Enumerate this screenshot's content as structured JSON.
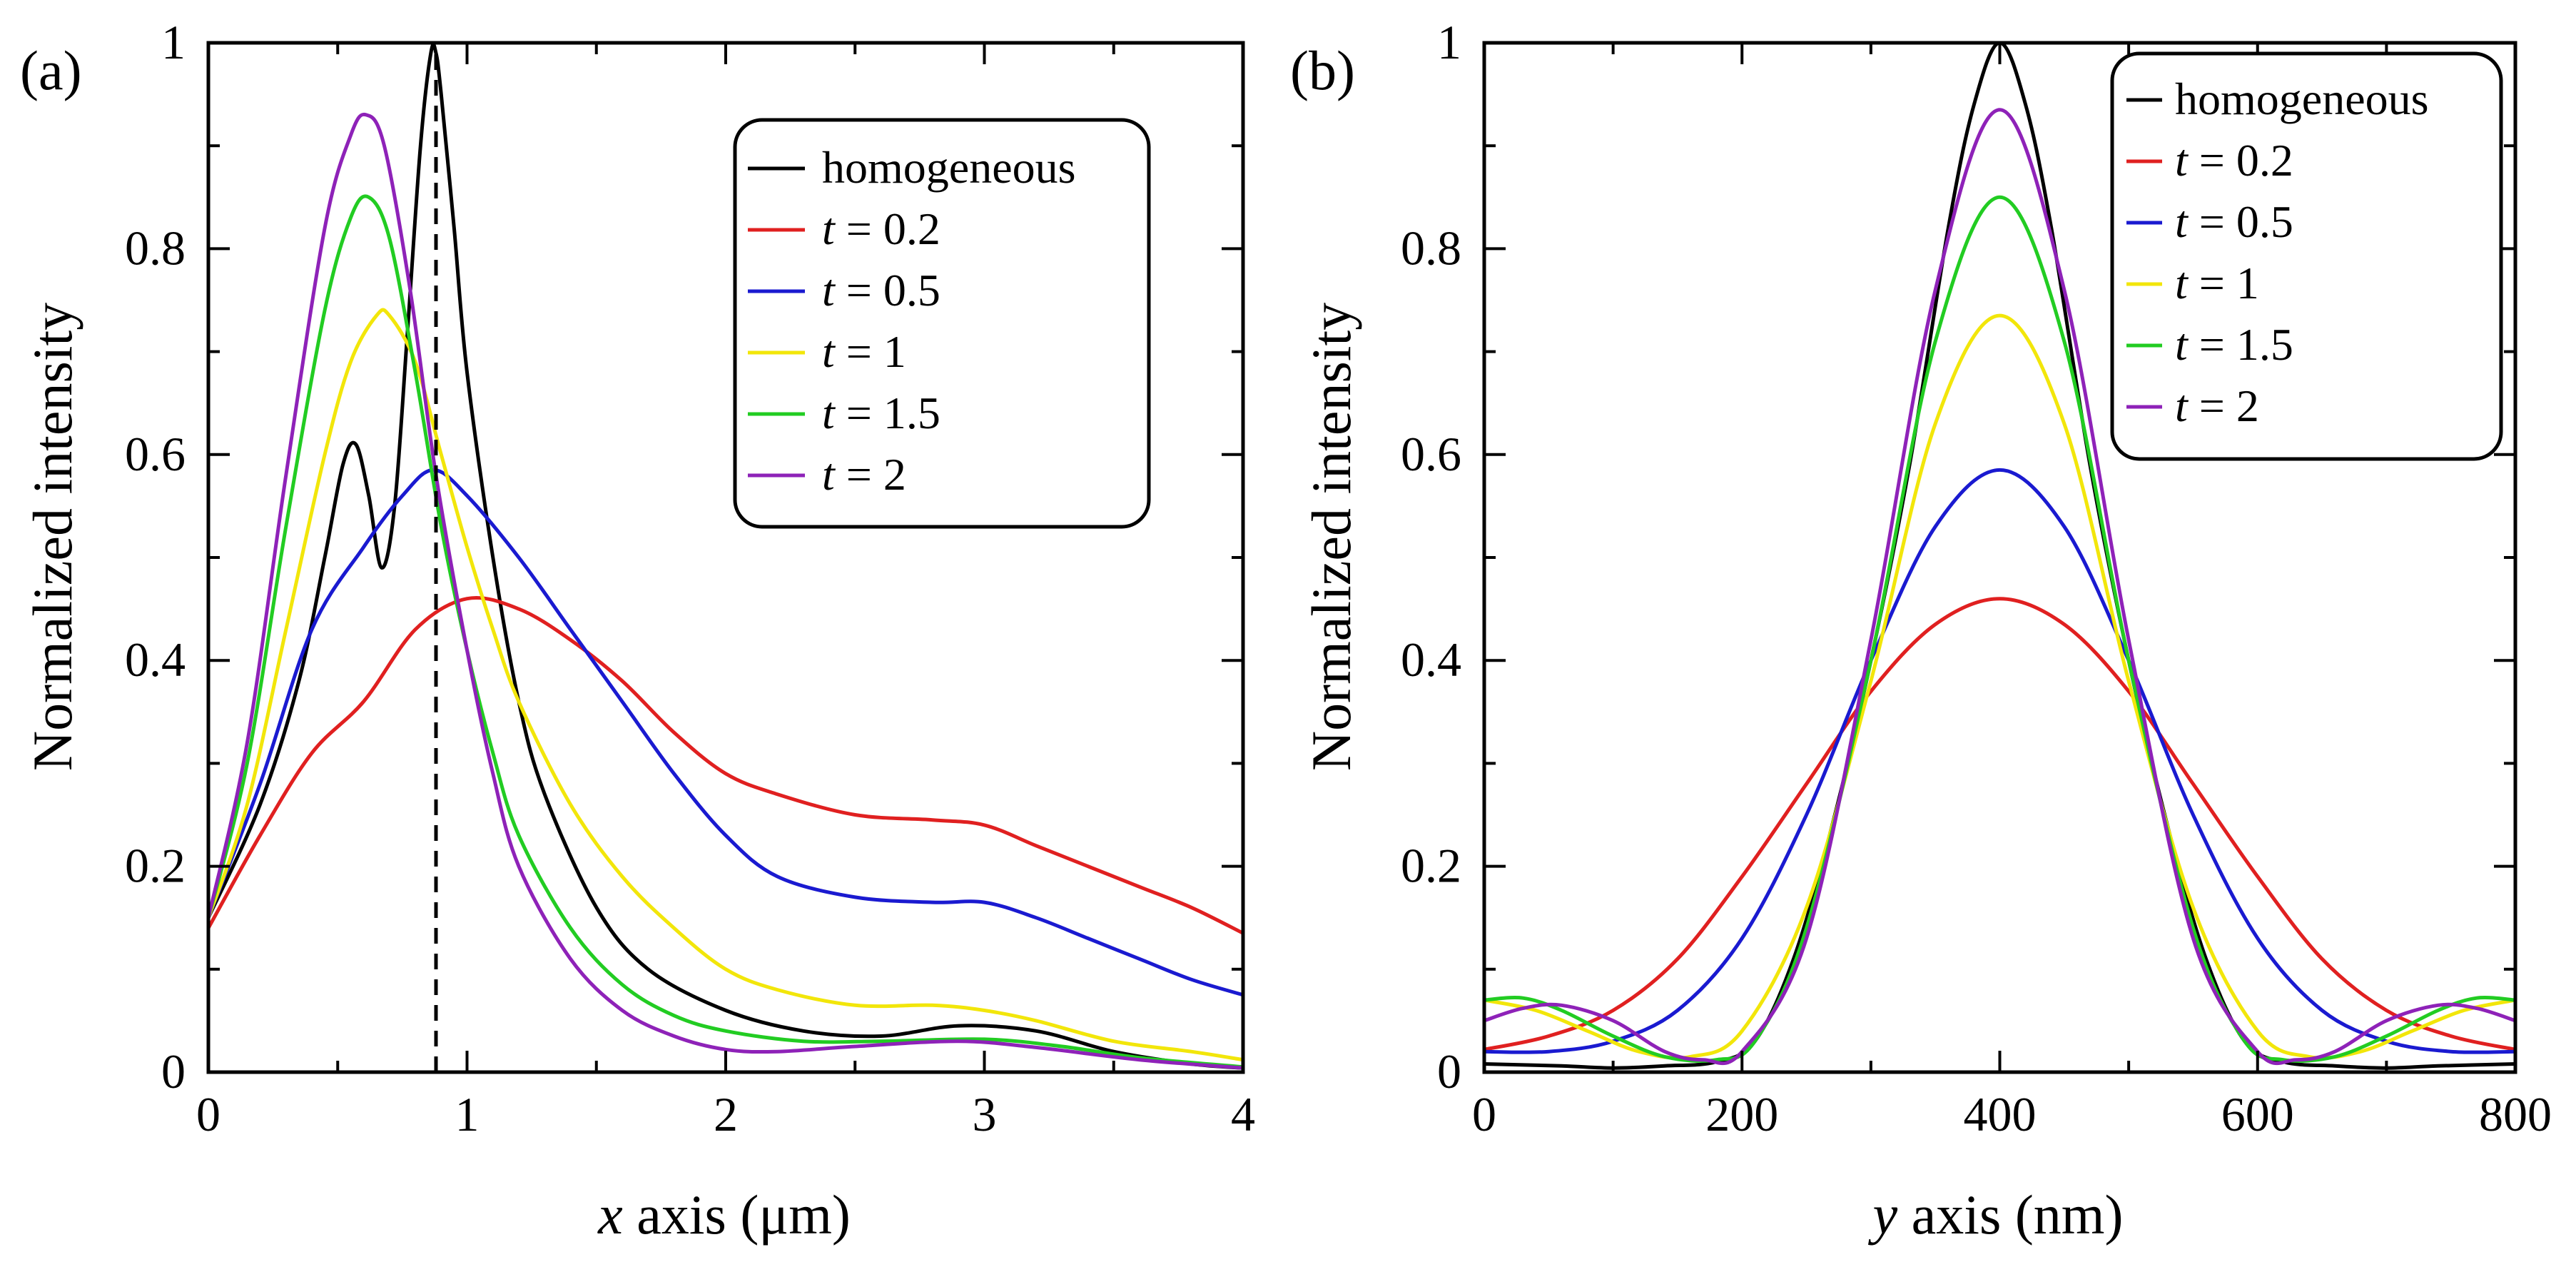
{
  "chart_data": [
    {
      "type": "line",
      "panel_label": "(a)",
      "xlabel_var": "x",
      "xlabel_rest": " axis (μm)",
      "ylabel": "Normalized intensity",
      "xlim": [
        0,
        4
      ],
      "ylim": [
        0,
        1
      ],
      "xticks": [
        0,
        1,
        2,
        3,
        4
      ],
      "xtick_labels": [
        "0",
        "1",
        "2",
        "3",
        "4"
      ],
      "yticks": [
        0,
        0.2,
        0.4,
        0.6,
        0.8,
        1
      ],
      "ytick_labels": [
        "0",
        "0.2",
        "0.4",
        "0.6",
        "0.8",
        "1"
      ],
      "vline_x": 0.88,
      "legend_position": "top-right",
      "series": [
        {
          "name": "homogeneous",
          "var": "",
          "label": "homogeneous",
          "color": "#000000",
          "x": [
            0,
            0.2,
            0.35,
            0.45,
            0.52,
            0.57,
            0.62,
            0.67,
            0.72,
            0.77,
            0.82,
            0.86,
            0.88,
            0.9,
            0.95,
            1.0,
            1.1,
            1.2,
            1.3,
            1.5,
            1.7,
            2.0,
            2.3,
            2.6,
            2.9,
            3.2,
            3.5,
            3.8,
            4.0
          ],
          "y": [
            0.15,
            0.26,
            0.38,
            0.5,
            0.59,
            0.61,
            0.56,
            0.49,
            0.55,
            0.72,
            0.9,
            0.99,
            0.99,
            0.95,
            0.82,
            0.68,
            0.5,
            0.36,
            0.27,
            0.16,
            0.1,
            0.06,
            0.04,
            0.035,
            0.045,
            0.04,
            0.02,
            0.008,
            0.004
          ]
        },
        {
          "name": "t = 0.2",
          "var": "t",
          "label": " = 0.2",
          "color": "#e02020",
          "x": [
            0,
            0.2,
            0.4,
            0.6,
            0.8,
            1.0,
            1.2,
            1.4,
            1.6,
            1.8,
            2.0,
            2.2,
            2.5,
            2.8,
            3.0,
            3.2,
            3.4,
            3.6,
            3.8,
            4.0
          ],
          "y": [
            0.14,
            0.23,
            0.31,
            0.36,
            0.43,
            0.46,
            0.45,
            0.42,
            0.38,
            0.33,
            0.29,
            0.27,
            0.25,
            0.245,
            0.24,
            0.22,
            0.2,
            0.18,
            0.16,
            0.135
          ]
        },
        {
          "name": "t = 0.5",
          "var": "t",
          "label": " = 0.5",
          "color": "#1a1ad0",
          "x": [
            0,
            0.2,
            0.4,
            0.6,
            0.75,
            0.87,
            1.0,
            1.2,
            1.4,
            1.6,
            1.8,
            2.0,
            2.2,
            2.5,
            2.8,
            3.0,
            3.2,
            3.4,
            3.6,
            3.8,
            4.0
          ],
          "y": [
            0.15,
            0.28,
            0.43,
            0.51,
            0.56,
            0.585,
            0.56,
            0.5,
            0.43,
            0.36,
            0.29,
            0.23,
            0.19,
            0.17,
            0.165,
            0.165,
            0.15,
            0.13,
            0.11,
            0.09,
            0.075
          ]
        },
        {
          "name": "t = 1",
          "var": "t",
          "label": " = 1",
          "color": "#f2e60a",
          "x": [
            0,
            0.15,
            0.3,
            0.45,
            0.55,
            0.65,
            0.7,
            0.8,
            0.9,
            1.0,
            1.1,
            1.2,
            1.4,
            1.6,
            1.8,
            2.0,
            2.2,
            2.5,
            2.8,
            3.0,
            3.2,
            3.5,
            3.8,
            4.0
          ],
          "y": [
            0.15,
            0.26,
            0.43,
            0.6,
            0.69,
            0.735,
            0.735,
            0.69,
            0.6,
            0.51,
            0.43,
            0.36,
            0.26,
            0.19,
            0.14,
            0.1,
            0.08,
            0.065,
            0.065,
            0.06,
            0.05,
            0.03,
            0.02,
            0.012
          ]
        },
        {
          "name": "t = 1.5",
          "var": "t",
          "label": " = 1.5",
          "color": "#22cc22",
          "x": [
            0,
            0.15,
            0.3,
            0.45,
            0.55,
            0.62,
            0.7,
            0.8,
            0.9,
            1.0,
            1.1,
            1.2,
            1.4,
            1.6,
            1.8,
            2.0,
            2.3,
            2.6,
            3.0,
            3.3,
            3.6,
            4.0
          ],
          "y": [
            0.15,
            0.3,
            0.53,
            0.74,
            0.83,
            0.85,
            0.81,
            0.68,
            0.53,
            0.41,
            0.31,
            0.23,
            0.14,
            0.085,
            0.055,
            0.04,
            0.03,
            0.03,
            0.032,
            0.025,
            0.014,
            0.005
          ]
        },
        {
          "name": "t = 2",
          "var": "t",
          "label": " = 2",
          "color": "#8e22b8",
          "x": [
            0,
            0.15,
            0.3,
            0.45,
            0.55,
            0.61,
            0.68,
            0.78,
            0.88,
            1.0,
            1.1,
            1.2,
            1.4,
            1.6,
            1.8,
            2.0,
            2.2,
            2.5,
            2.9,
            3.2,
            3.6,
            4.0
          ],
          "y": [
            0.15,
            0.32,
            0.58,
            0.82,
            0.91,
            0.93,
            0.9,
            0.76,
            0.58,
            0.41,
            0.29,
            0.2,
            0.11,
            0.06,
            0.035,
            0.022,
            0.02,
            0.025,
            0.03,
            0.024,
            0.012,
            0.004
          ]
        }
      ]
    },
    {
      "type": "line",
      "panel_label": "(b)",
      "xlabel_var": "y",
      "xlabel_rest": " axis (nm)",
      "ylabel": "Normalized intensity",
      "xlim": [
        0,
        800
      ],
      "ylim": [
        0,
        1
      ],
      "xticks": [
        0,
        200,
        400,
        600,
        800
      ],
      "xtick_labels": [
        "0",
        "200",
        "400",
        "600",
        "800"
      ],
      "yticks": [
        0,
        0.2,
        0.4,
        0.6,
        0.8,
        1
      ],
      "ytick_labels": [
        "0",
        "0.2",
        "0.4",
        "0.6",
        "0.8",
        "1"
      ],
      "legend_position": "top-right",
      "series": [
        {
          "name": "homogeneous",
          "var": "",
          "label": "homogeneous",
          "color": "#000000",
          "x": [
            0,
            60,
            100,
            140,
            180,
            210,
            240,
            270,
            300,
            330,
            360,
            380,
            400,
            420,
            440,
            470,
            500,
            530,
            560,
            590,
            620,
            660,
            700,
            740,
            800
          ],
          "y": [
            0.008,
            0.006,
            0.004,
            0.006,
            0.01,
            0.03,
            0.11,
            0.24,
            0.4,
            0.59,
            0.82,
            0.94,
            1.0,
            0.94,
            0.82,
            0.59,
            0.4,
            0.24,
            0.11,
            0.03,
            0.01,
            0.006,
            0.004,
            0.006,
            0.008
          ]
        },
        {
          "name": "t = 0.2",
          "var": "t",
          "label": " = 0.2",
          "color": "#e02020",
          "x": [
            0,
            50,
            100,
            150,
            200,
            250,
            300,
            350,
            400,
            450,
            500,
            550,
            600,
            650,
            700,
            750,
            800
          ],
          "y": [
            0.022,
            0.035,
            0.06,
            0.11,
            0.19,
            0.28,
            0.37,
            0.435,
            0.46,
            0.435,
            0.37,
            0.28,
            0.19,
            0.11,
            0.06,
            0.035,
            0.022
          ]
        },
        {
          "name": "t = 0.5",
          "var": "t",
          "label": " = 0.5",
          "color": "#1a1ad0",
          "x": [
            0,
            50,
            100,
            150,
            200,
            250,
            300,
            350,
            400,
            450,
            500,
            550,
            600,
            650,
            700,
            750,
            800
          ],
          "y": [
            0.02,
            0.02,
            0.03,
            0.06,
            0.13,
            0.25,
            0.4,
            0.53,
            0.585,
            0.53,
            0.4,
            0.25,
            0.13,
            0.06,
            0.03,
            0.02,
            0.02
          ]
        },
        {
          "name": "t = 1",
          "var": "t",
          "label": " = 1",
          "color": "#f2e60a",
          "x": [
            0,
            40,
            80,
            120,
            160,
            200,
            250,
            300,
            350,
            400,
            450,
            500,
            550,
            600,
            640,
            680,
            720,
            760,
            800
          ],
          "y": [
            0.07,
            0.06,
            0.04,
            0.02,
            0.015,
            0.04,
            0.16,
            0.38,
            0.63,
            0.735,
            0.63,
            0.38,
            0.16,
            0.04,
            0.015,
            0.02,
            0.04,
            0.06,
            0.07
          ]
        },
        {
          "name": "t = 1.5",
          "var": "t",
          "label": " = 1.5",
          "color": "#22cc22",
          "x": [
            0,
            30,
            60,
            100,
            140,
            180,
            210,
            250,
            300,
            350,
            400,
            450,
            500,
            550,
            590,
            620,
            660,
            700,
            740,
            770,
            800
          ],
          "y": [
            0.07,
            0.072,
            0.06,
            0.035,
            0.015,
            0.012,
            0.03,
            0.14,
            0.4,
            0.71,
            0.85,
            0.71,
            0.4,
            0.14,
            0.03,
            0.012,
            0.015,
            0.035,
            0.06,
            0.072,
            0.07
          ]
        },
        {
          "name": "t = 2",
          "var": "t",
          "label": " = 2",
          "color": "#8e22b8",
          "x": [
            0,
            30,
            60,
            100,
            140,
            170,
            200,
            250,
            300,
            350,
            400,
            450,
            500,
            550,
            600,
            630,
            660,
            700,
            740,
            770,
            800
          ],
          "y": [
            0.05,
            0.062,
            0.065,
            0.05,
            0.02,
            0.012,
            0.02,
            0.13,
            0.42,
            0.76,
            0.935,
            0.76,
            0.42,
            0.13,
            0.02,
            0.012,
            0.02,
            0.05,
            0.065,
            0.062,
            0.05
          ]
        }
      ]
    }
  ]
}
